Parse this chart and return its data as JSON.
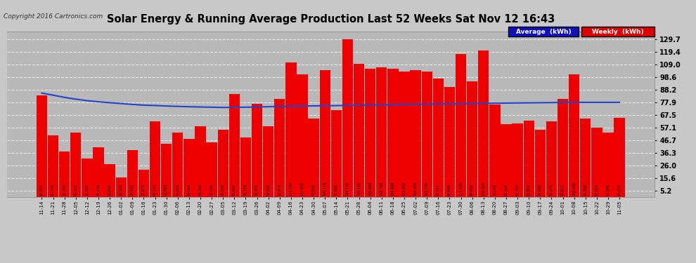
{
  "title": "Solar Energy & Running Average Production Last 52 Weeks Sat Nov 12 16:43",
  "copyright": "Copyright 2016 Cartronics.com",
  "bar_color": "#ee0000",
  "line_color": "#2244cc",
  "background_color": "#c8c8c8",
  "plot_bg_color": "#b8b8b8",
  "grid_color": "#e8e8e8",
  "legend_avg_bg": "#1111bb",
  "legend_weekly_bg": "#dd0000",
  "legend_text_color": "#ffffff",
  "ylim": [
    0,
    136
  ],
  "yticks": [
    5.2,
    15.6,
    26.0,
    36.3,
    46.7,
    57.1,
    67.5,
    77.9,
    88.2,
    98.6,
    109.0,
    119.4,
    129.7
  ],
  "categories": [
    "11-14",
    "11-21",
    "11-28",
    "12-05",
    "12-12",
    "12-19",
    "12-26",
    "01-02",
    "01-09",
    "01-16",
    "01-23",
    "01-30",
    "02-06",
    "02-13",
    "02-20",
    "02-27",
    "03-05",
    "03-12",
    "03-19",
    "03-26",
    "04-02",
    "04-09",
    "04-16",
    "04-23",
    "04-30",
    "05-07",
    "05-14",
    "05-21",
    "05-28",
    "06-04",
    "06-11",
    "06-18",
    "06-25",
    "07-02",
    "07-09",
    "07-16",
    "07-23",
    "07-30",
    "08-06",
    "08-13",
    "08-20",
    "08-27",
    "09-03",
    "09-10",
    "09-17",
    "09-24",
    "10-01",
    "10-08",
    "10-15",
    "10-22",
    "10-29",
    "11-05"
  ],
  "weekly_values": [
    83.652,
    50.728,
    37.792,
    53.21,
    32.062,
    41.102,
    26.932,
    16.534,
    38.442,
    22.878,
    62.12,
    44.064,
    53.072,
    48.024,
    58.15,
    45.136,
    55.536,
    84.944,
    49.128,
    76.872,
    58.008,
    80.81,
    110.79,
    100.906,
    64.858,
    104.118,
    71.606,
    129.734,
    109.432,
    105.668,
    106.768,
    105.668,
    102.902,
    104.456,
    103.106,
    97.521,
    90.568,
    117.436,
    95.036,
    120.506,
    76.04,
    60.164,
    60.794,
    62.852,
    55.68,
    62.27,
    80.81,
    100.906,
    64.858,
    57.014,
    52.95,
    65.27
  ],
  "avg_values": [
    85.5,
    83.8,
    82.0,
    80.5,
    79.3,
    78.4,
    77.6,
    76.9,
    76.2,
    75.6,
    75.3,
    74.9,
    74.6,
    74.3,
    74.1,
    73.9,
    73.7,
    73.8,
    73.9,
    74.1,
    74.3,
    74.5,
    74.7,
    74.9,
    75.0,
    75.1,
    75.2,
    75.4,
    75.6,
    75.7,
    75.9,
    76.1,
    76.3,
    76.4,
    76.5,
    76.6,
    76.7,
    76.8,
    76.9,
    77.1,
    77.2,
    77.3,
    77.4,
    77.5,
    77.6,
    77.7,
    77.8,
    77.9,
    77.9,
    77.9,
    77.9,
    77.9
  ]
}
